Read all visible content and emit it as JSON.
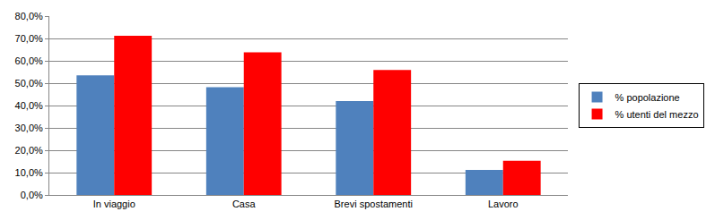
{
  "chart_data": {
    "type": "bar",
    "categories": [
      "In viaggio",
      "Casa",
      "Brevi spostamenti",
      "Lavoro"
    ],
    "series": [
      {
        "name": "% popolazione",
        "color": "#4f81bd",
        "values": [
          53.5,
          48.2,
          42.0,
          11.2
        ]
      },
      {
        "name": "% utenti del mezzo",
        "color": "#ff0000",
        "values": [
          71.2,
          63.8,
          55.9,
          15.3
        ]
      }
    ],
    "ylim": [
      0,
      80
    ],
    "yticks": [
      {
        "value": 0,
        "label": "0,0%"
      },
      {
        "value": 10,
        "label": "10,0%"
      },
      {
        "value": 20,
        "label": "20,0%"
      },
      {
        "value": 30,
        "label": "30,0%"
      },
      {
        "value": 40,
        "label": "40,0%"
      },
      {
        "value": 50,
        "label": "50,0%"
      },
      {
        "value": 60,
        "label": "60,0%"
      },
      {
        "value": 70,
        "label": "70,0%"
      },
      {
        "value": 80,
        "label": "80,0%"
      }
    ],
    "grid": true,
    "legend": "right"
  }
}
